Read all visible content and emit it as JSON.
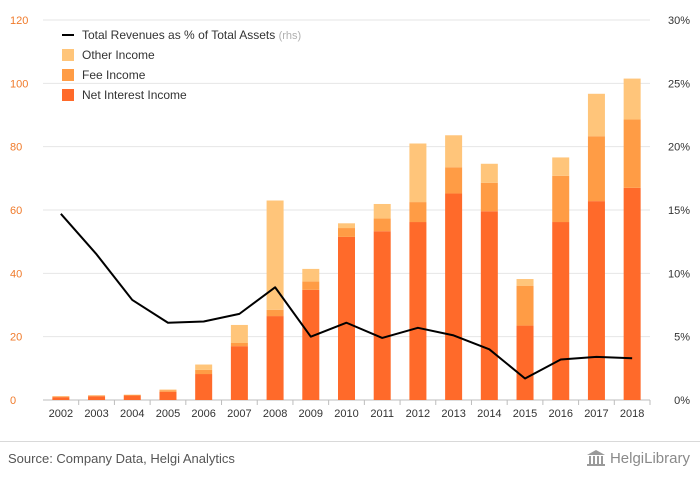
{
  "chart_data": {
    "type": "bar",
    "stacked": true,
    "categories": [
      "2002",
      "2003",
      "2004",
      "2005",
      "2006",
      "2007",
      "2008",
      "2009",
      "2010",
      "2011",
      "2012",
      "2013",
      "2014",
      "2015",
      "2016",
      "2017",
      "2018"
    ],
    "series": [
      {
        "name": "Net Interest Income",
        "color": "#ff6a2a",
        "values": [
          0.9,
          1.2,
          1.4,
          2.6,
          8.2,
          17.0,
          26.5,
          34.8,
          51.5,
          53.3,
          56.2,
          65.2,
          59.6,
          23.5,
          56.2,
          62.8,
          67.0
        ]
      },
      {
        "name": "Fee Income",
        "color": "#ff9c45",
        "values": [
          0.2,
          0.2,
          0.2,
          0.5,
          1.3,
          1.0,
          2.0,
          2.6,
          2.8,
          4.0,
          6.3,
          8.3,
          9.0,
          12.6,
          14.6,
          20.5,
          21.6
        ]
      },
      {
        "name": "Other Income",
        "color": "#ffc57a",
        "values": [
          0.1,
          0.1,
          0.1,
          0.2,
          1.7,
          5.7,
          34.5,
          4.0,
          1.5,
          4.6,
          18.5,
          10.1,
          6.0,
          2.1,
          5.8,
          13.4,
          12.9
        ]
      }
    ],
    "line": {
      "name": "Total Revenues as % of Total Assets",
      "suffix": "(rhs)",
      "color": "#000000",
      "axis": "right",
      "values": [
        14.7,
        11.5,
        7.9,
        6.1,
        6.2,
        6.8,
        8.9,
        5.0,
        6.1,
        4.9,
        5.7,
        5.1,
        4.0,
        1.7,
        3.2,
        3.4,
        3.3
      ]
    },
    "y_left": {
      "min": 0,
      "max": 120,
      "ticks": [
        "0",
        "20",
        "40",
        "60",
        "80",
        "100",
        "120"
      ],
      "color": "#f07a2a"
    },
    "y_right": {
      "min": 0,
      "max": 30,
      "ticks": [
        "0%",
        "5%",
        "10%",
        "15%",
        "20%",
        "25%",
        "30%"
      ],
      "color": "#333333"
    },
    "grid": true,
    "legend_position": "top-left"
  },
  "footer": {
    "source": "Source: Company Data, Helgi Analytics",
    "logo": "HelgiLibrary"
  }
}
